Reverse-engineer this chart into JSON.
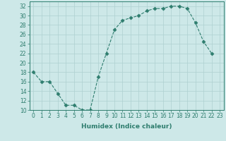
{
  "title": "",
  "xlabel": "Humidex (Indice chaleur)",
  "x_vals": [
    0,
    1,
    2,
    3,
    4,
    5,
    6,
    7,
    8,
    9,
    10,
    11,
    12,
    13,
    14,
    15,
    16,
    17,
    18,
    19,
    20,
    21,
    22
  ],
  "y_vals": [
    18,
    16,
    16,
    13.5,
    11,
    11,
    10,
    10,
    17,
    22,
    27,
    29,
    29.5,
    30,
    31,
    31.5,
    31.5,
    32,
    32,
    31.5,
    28.5,
    24.5,
    22
  ],
  "line_color": "#2e7d6e",
  "marker": "D",
  "marker_size": 2.5,
  "bg_color": "#cde8e8",
  "grid_color": "#aed0d0",
  "ylim": [
    10,
    33
  ],
  "xlim": [
    -0.5,
    23.5
  ],
  "yticks": [
    10,
    12,
    14,
    16,
    18,
    20,
    22,
    24,
    26,
    28,
    30,
    32
  ],
  "xticks": [
    0,
    1,
    2,
    3,
    4,
    5,
    6,
    7,
    8,
    9,
    10,
    11,
    12,
    13,
    14,
    15,
    16,
    17,
    18,
    19,
    20,
    21,
    22,
    23
  ],
  "xtick_labels": [
    "0",
    "1",
    "2",
    "3",
    "4",
    "5",
    "6",
    "7",
    "8",
    "9",
    "10",
    "11",
    "12",
    "13",
    "14",
    "15",
    "16",
    "17",
    "18",
    "19",
    "20",
    "21",
    "22",
    "23"
  ],
  "label_fontsize": 6.5,
  "tick_fontsize": 5.5
}
